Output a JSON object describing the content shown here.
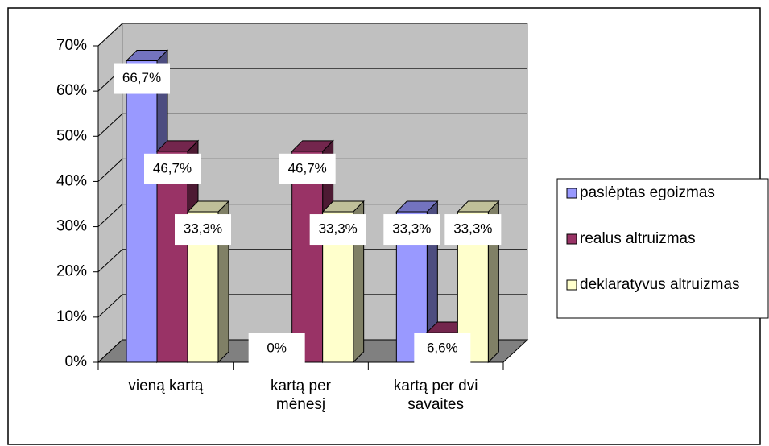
{
  "chart_data": {
    "type": "bar3d",
    "categories": [
      "vieną kartą",
      "kartą per mėnesį",
      "kartą per dvi savaites"
    ],
    "series": [
      {
        "name": "paslėptas egoizmas",
        "color": "#9999ff",
        "values": [
          66.7,
          0,
          33.3
        ],
        "value_labels": [
          "66,7%",
          "0%",
          "33,3%"
        ]
      },
      {
        "name": "realus altruizmas",
        "color": "#993366",
        "values": [
          46.7,
          46.7,
          6.6
        ],
        "value_labels": [
          "46,7%",
          "46,7%",
          "6,6%"
        ]
      },
      {
        "name": "deklaratyvus altruizmas",
        "color": "#ffffcc",
        "values": [
          33.3,
          33.3,
          33.3
        ],
        "value_labels": [
          "33,3%",
          "33,3%",
          "33,3%"
        ]
      }
    ],
    "ylim": [
      0,
      70
    ],
    "yticks": [
      {
        "value": 0,
        "label": "0%"
      },
      {
        "value": 10,
        "label": "10%"
      },
      {
        "value": 20,
        "label": "20%"
      },
      {
        "value": 30,
        "label": "30%"
      },
      {
        "value": 40,
        "label": "40%"
      },
      {
        "value": 50,
        "label": "50%"
      },
      {
        "value": 60,
        "label": "60%"
      },
      {
        "value": 70,
        "label": "70%"
      }
    ],
    "grid": true,
    "legend": "right"
  }
}
